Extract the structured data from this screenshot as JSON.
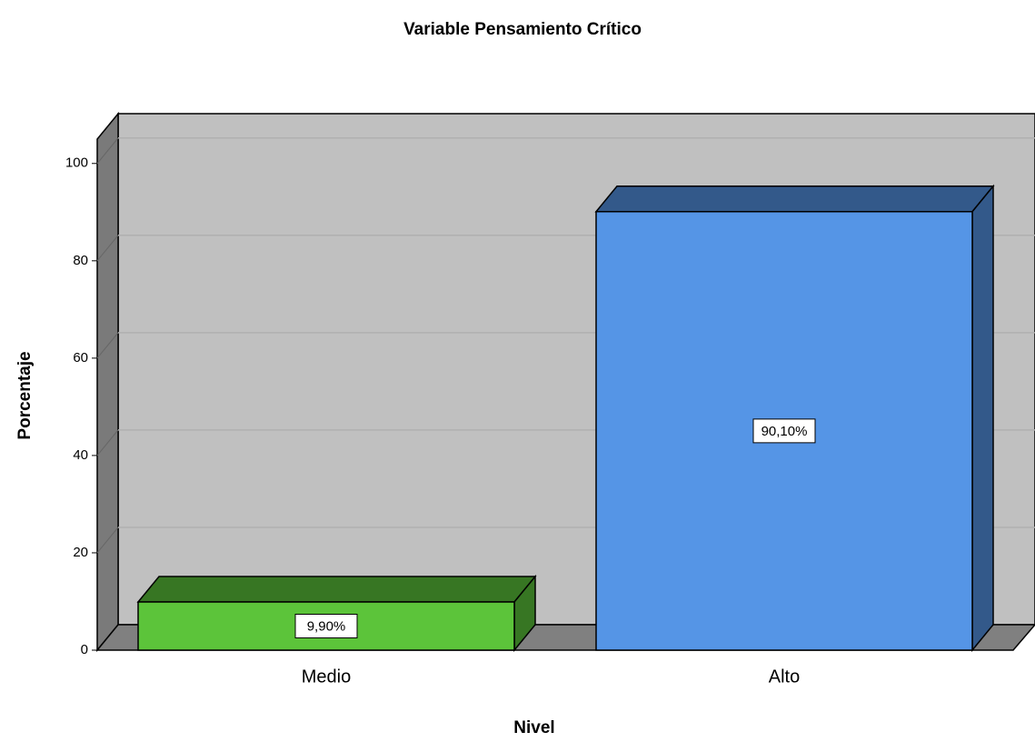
{
  "chart_data": {
    "type": "bar3d",
    "title": "Variable Pensamiento Crítico",
    "xlabel": "Nivel",
    "ylabel": "Porcentaje",
    "categories": [
      "Medio",
      "Alto"
    ],
    "values": [
      9.9,
      90.1
    ],
    "value_labels": [
      "9,90%",
      "90,10%"
    ],
    "colors": [
      "#5cc43a",
      "#5595e6"
    ],
    "ylim": [
      0,
      105
    ],
    "yticks": [
      0,
      20,
      40,
      60,
      80,
      100
    ],
    "grid": true
  }
}
